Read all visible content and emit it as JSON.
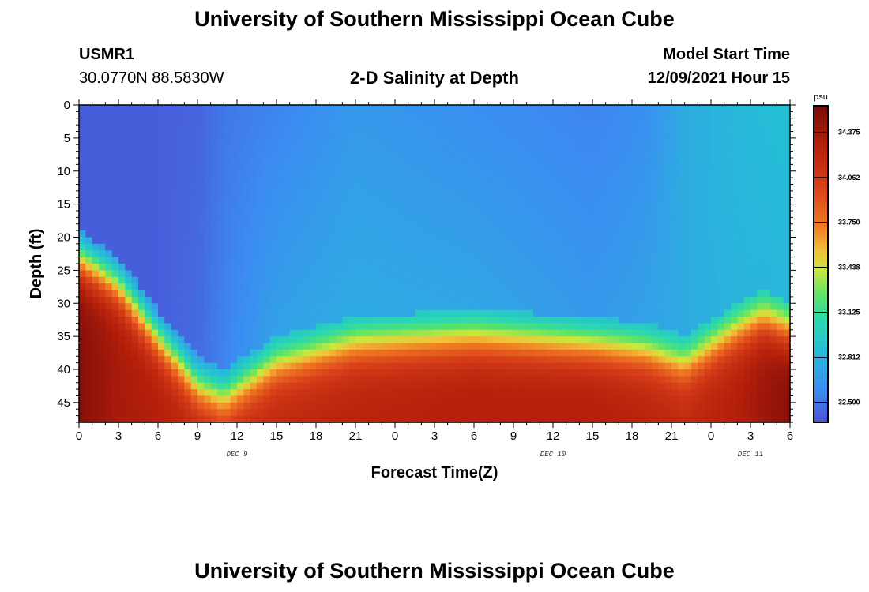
{
  "page": {
    "title_top": "University of Southern Mississippi Ocean Cube",
    "title_bottom": "University of Southern Mississippi Ocean Cube",
    "station_id": "USMR1",
    "coordinates": "30.0770N  88.5830W",
    "plot_title": "2-D Salinity at Depth",
    "model_start_label": "Model Start Time",
    "model_start_value": "12/09/2021 Hour 15"
  },
  "chart_data": {
    "type": "heatmap",
    "title": "2-D Salinity at Depth",
    "xlabel": "Forecast Time(Z)",
    "ylabel": "Depth (ft)",
    "x_unit": "forecast hour",
    "xlim": [
      0,
      54
    ],
    "ylim": [
      48,
      0
    ],
    "y_ticks": [
      0,
      5,
      10,
      15,
      20,
      25,
      30,
      35,
      40,
      45
    ],
    "x_tick_labels": [
      "0",
      "3",
      "6",
      "9",
      "12",
      "15",
      "18",
      "21",
      "0",
      "3",
      "6",
      "9",
      "12",
      "15",
      "18",
      "21",
      "0",
      "3",
      "6"
    ],
    "date_labels": [
      {
        "text": "DEC 9",
        "x": 12
      },
      {
        "text": "DEC 10",
        "x": 36
      },
      {
        "text": "DEC 11",
        "x": 51
      }
    ],
    "colorbar": {
      "unit": "psu",
      "min": 32.36,
      "max": 34.56,
      "tick_labels": [
        "34.375",
        "34.062",
        "33.750",
        "33.438",
        "33.125",
        "32.812",
        "32.500"
      ],
      "tick_values": [
        34.375,
        34.062,
        33.75,
        33.438,
        33.125,
        32.812,
        32.5
      ]
    },
    "profile_points": [
      {
        "t": 0,
        "halocline_depth_ft": 19,
        "surface_psu": 32.4,
        "mid_psu": 32.4,
        "bottom_psu": 34.5
      },
      {
        "t": 3,
        "halocline_depth_ft": 23,
        "surface_psu": 32.4,
        "mid_psu": 32.4,
        "bottom_psu": 34.35
      },
      {
        "t": 6,
        "halocline_depth_ft": 31,
        "surface_psu": 32.4,
        "mid_psu": 32.4,
        "bottom_psu": 34.3
      },
      {
        "t": 9,
        "halocline_depth_ft": 38,
        "surface_psu": 32.42,
        "mid_psu": 32.45,
        "bottom_psu": 34.2
      },
      {
        "t": 11,
        "halocline_depth_ft": 40,
        "surface_psu": 32.5,
        "mid_psu": 32.55,
        "bottom_psu": 34.15
      },
      {
        "t": 15,
        "halocline_depth_ft": 35,
        "surface_psu": 32.55,
        "mid_psu": 32.7,
        "bottom_psu": 34.2
      },
      {
        "t": 21,
        "halocline_depth_ft": 32,
        "surface_psu": 32.65,
        "mid_psu": 32.75,
        "bottom_psu": 34.25
      },
      {
        "t": 30,
        "halocline_depth_ft": 31,
        "surface_psu": 32.6,
        "mid_psu": 32.72,
        "bottom_psu": 34.3
      },
      {
        "t": 39,
        "halocline_depth_ft": 32,
        "surface_psu": 32.55,
        "mid_psu": 32.65,
        "bottom_psu": 34.3
      },
      {
        "t": 43,
        "halocline_depth_ft": 33,
        "surface_psu": 32.6,
        "mid_psu": 32.7,
        "bottom_psu": 34.25
      },
      {
        "t": 46,
        "halocline_depth_ft": 35,
        "surface_psu": 32.75,
        "mid_psu": 32.75,
        "bottom_psu": 34.2
      },
      {
        "t": 50,
        "halocline_depth_ft": 30,
        "surface_psu": 32.82,
        "mid_psu": 32.8,
        "bottom_psu": 34.3
      },
      {
        "t": 52,
        "halocline_depth_ft": 28,
        "surface_psu": 32.85,
        "mid_psu": 32.8,
        "bottom_psu": 34.4
      },
      {
        "t": 54,
        "halocline_depth_ft": 30,
        "surface_psu": 32.87,
        "mid_psu": 32.82,
        "bottom_psu": 34.5
      }
    ]
  }
}
